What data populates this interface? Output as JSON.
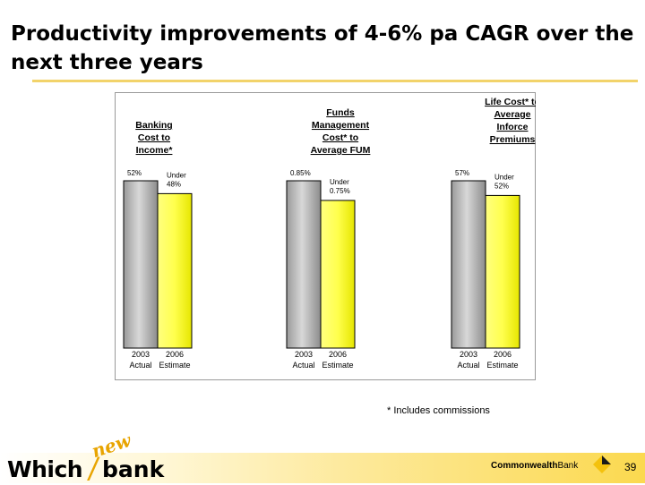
{
  "title": "Productivity improvements of 4-6% pa CAGR over the next three years",
  "footnote": "* Includes commissions",
  "page_number": "39",
  "branding": {
    "which": "Which",
    "new": "new",
    "bank": "bank",
    "cba_bold": "Commonwealth",
    "cba_light": "Bank"
  },
  "colors": {
    "accent": "#f2d36a",
    "bar_actual": "#b0b0b0",
    "bar_estimate": "#ffff66"
  },
  "chart_data": [
    {
      "type": "bar",
      "title": [
        "Banking",
        "Cost to",
        "Income*"
      ],
      "categories": [
        [
          "2003",
          "Actual"
        ],
        [
          "2006",
          "Estimate"
        ]
      ],
      "values": [
        52,
        48
      ],
      "unit": "%",
      "data_labels": [
        [
          "52%"
        ],
        [
          "Under",
          "48%"
        ]
      ]
    },
    {
      "type": "bar",
      "title": [
        "Funds",
        "Management",
        "Cost* to",
        "Average FUM"
      ],
      "categories": [
        [
          "2003",
          "Actual"
        ],
        [
          "2006",
          "Estimate"
        ]
      ],
      "values": [
        0.85,
        0.75
      ],
      "unit": "%",
      "data_labels": [
        [
          "0.85%"
        ],
        [
          "Under",
          "0.75%"
        ]
      ]
    },
    {
      "type": "bar",
      "title": [
        "Life Cost* to",
        "Average",
        "Inforce",
        "Premiums"
      ],
      "categories": [
        [
          "2003",
          "Actual"
        ],
        [
          "2006",
          "Estimate"
        ]
      ],
      "values": [
        57,
        52
      ],
      "unit": "%",
      "data_labels": [
        [
          "57%"
        ],
        [
          "Under",
          "52%"
        ]
      ]
    }
  ]
}
